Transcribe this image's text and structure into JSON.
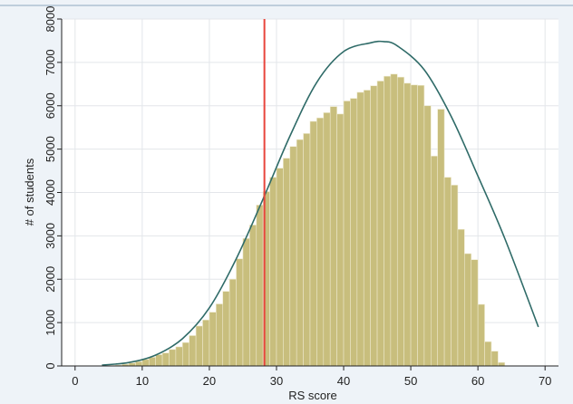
{
  "chart_data": {
    "type": "bar",
    "title": "",
    "xlabel": "RS score",
    "ylabel": "# of students",
    "xlim": [
      -2,
      72
    ],
    "ylim": [
      0,
      8000
    ],
    "x_ticks": [
      0,
      10,
      20,
      30,
      40,
      50,
      60,
      70
    ],
    "y_ticks": [
      0,
      1000,
      2000,
      3000,
      4000,
      5000,
      6000,
      7000,
      8000
    ],
    "grid": true,
    "colors": {
      "bar_fill": "#c8be7d",
      "bar_edge": "#ede8cc",
      "curve": "#2f6b68",
      "cutoff_line": "#e8453c",
      "outer_background": "#eef3f8"
    },
    "histogram": {
      "bin_start": 5,
      "bin_width": 1,
      "values": [
        10,
        20,
        40,
        70,
        100,
        150,
        200,
        260,
        300,
        380,
        440,
        540,
        700,
        920,
        1060,
        1240,
        1430,
        1720,
        2000,
        2470,
        2940,
        3250,
        3710,
        4020,
        4350,
        4560,
        4790,
        5060,
        5220,
        5360,
        5640,
        5720,
        5840,
        5980,
        5810,
        6110,
        6170,
        6310,
        6360,
        6460,
        6570,
        6680,
        6730,
        6660,
        6520,
        6480,
        6470,
        6000,
        4840,
        5920,
        4350,
        4170,
        3150,
        2590,
        2450,
        1420,
        560,
        340,
        80
      ]
    },
    "normal_curve": {
      "x": [
        4,
        8,
        12,
        16,
        20,
        24,
        28,
        32,
        36,
        40,
        44,
        46,
        48,
        52,
        56,
        60,
        64,
        69
      ],
      "y": [
        20,
        80,
        250,
        630,
        1340,
        2470,
        3850,
        5300,
        6540,
        7250,
        7450,
        7480,
        7380,
        6830,
        5760,
        4380,
        2940,
        900
      ]
    },
    "reference_line": {
      "x": 28.2
    }
  }
}
